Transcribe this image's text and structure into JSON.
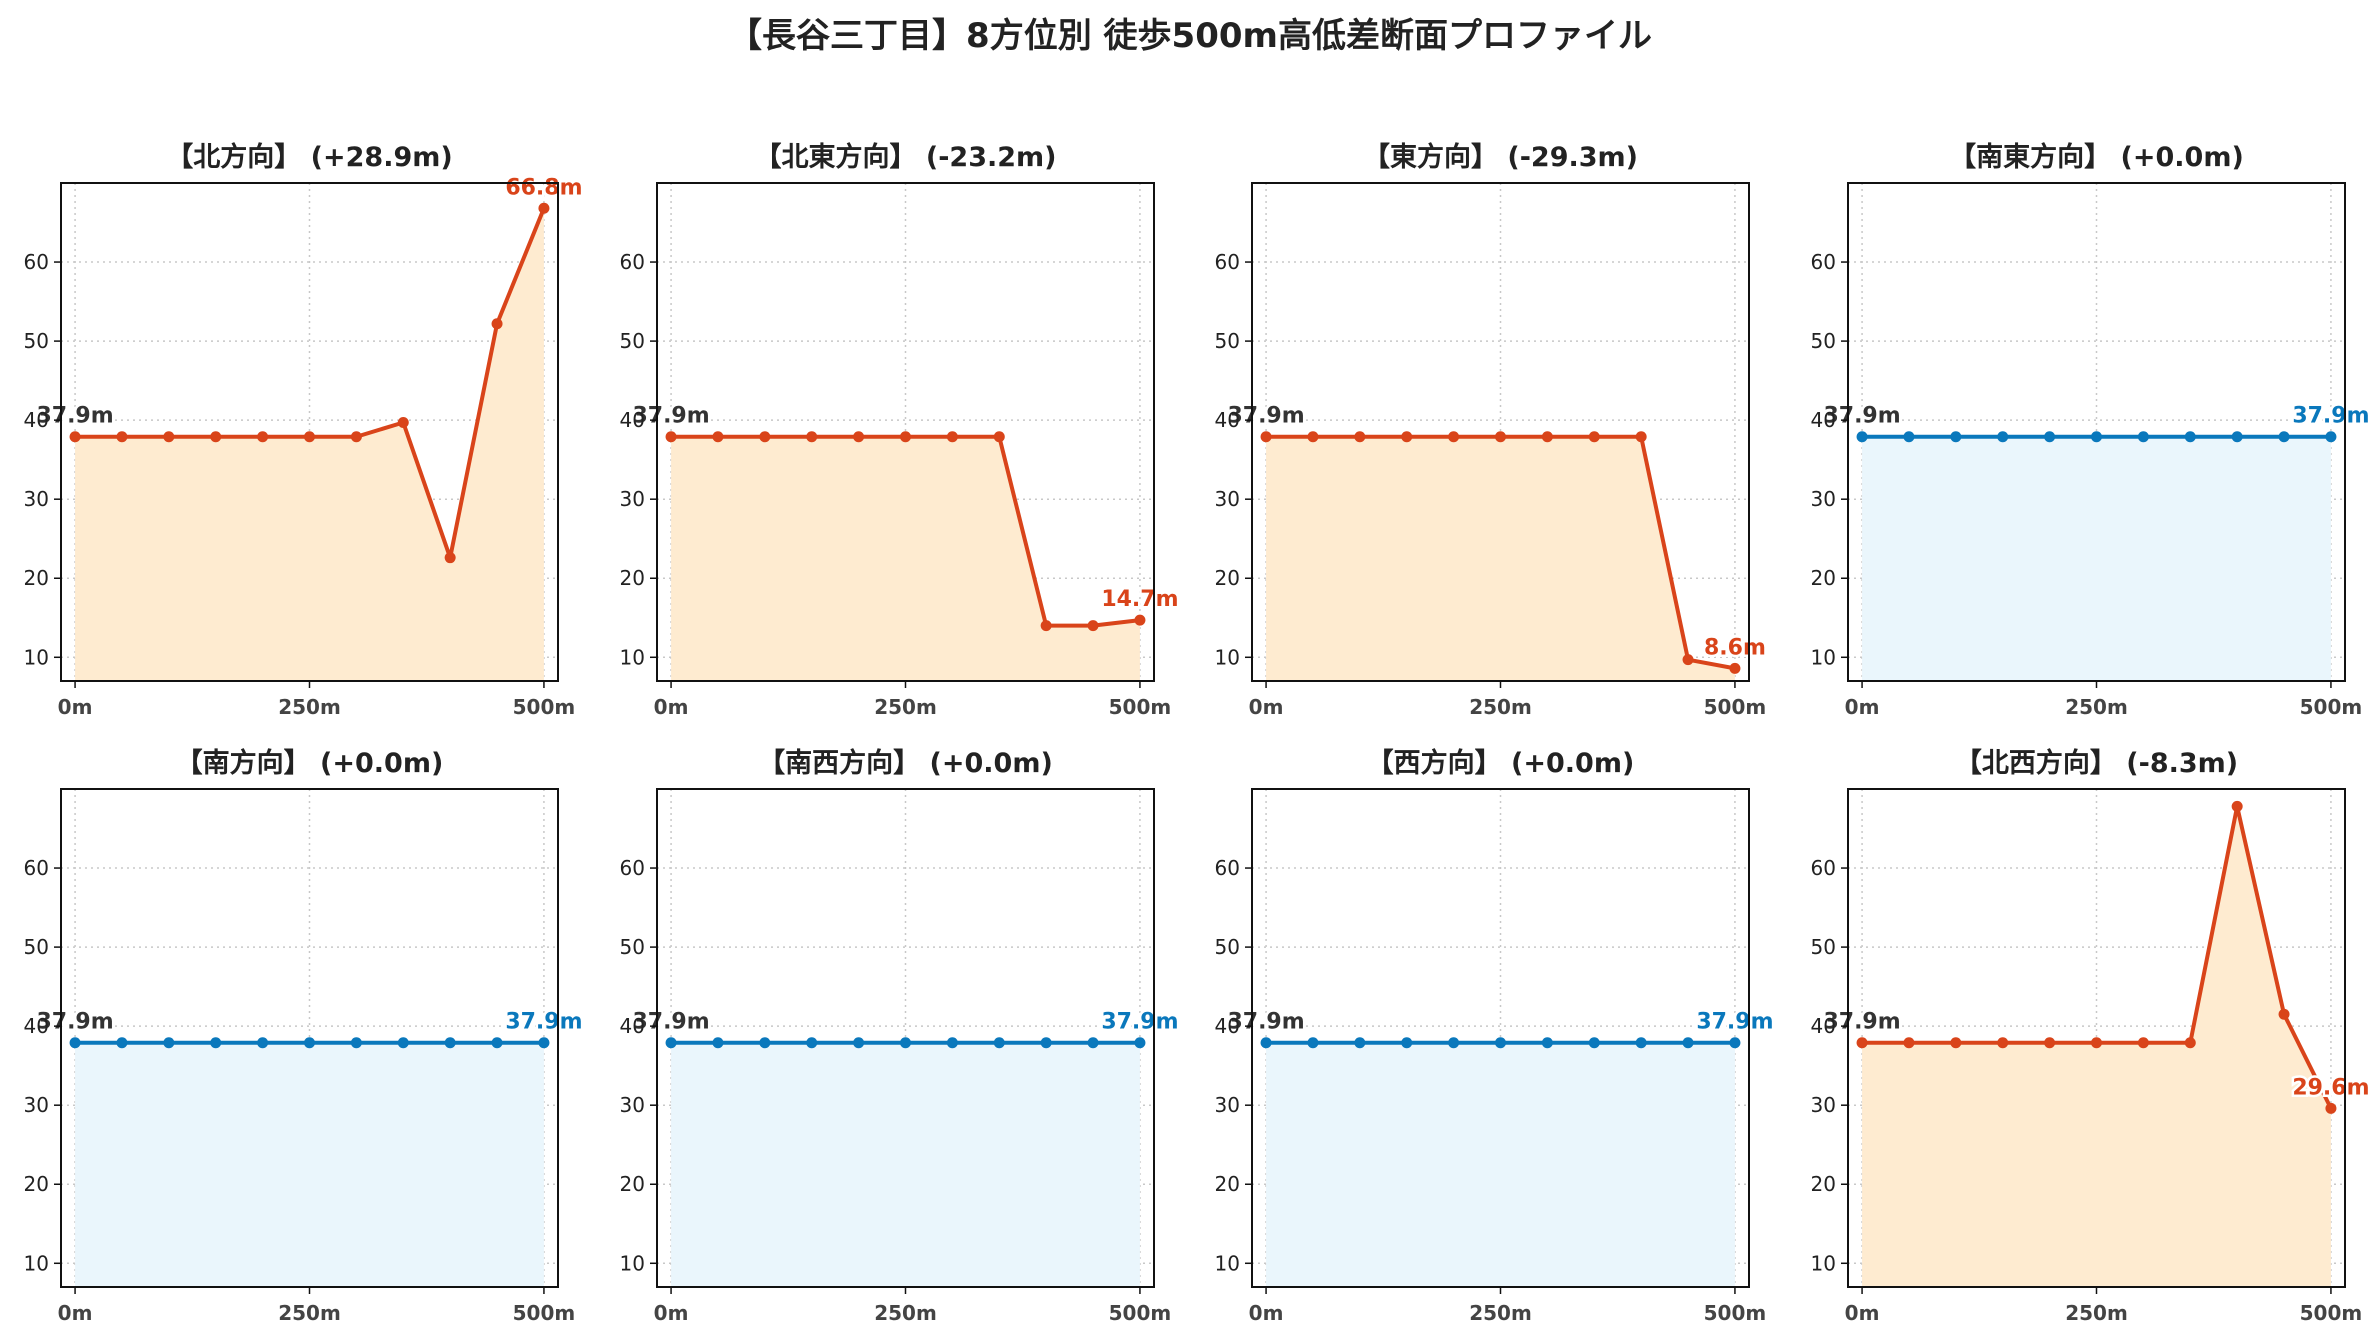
{
  "title": "【長谷三丁目】8方位別 徒歩500m高低差断面プロファイル",
  "colors": {
    "up_line": "#d9441a",
    "up_fill": "#feebd0",
    "flat_line": "#0a78bc",
    "flat_fill": "#eaf6fc",
    "start_label": "#333333",
    "grid": "#c8c8c8"
  },
  "chart_data": [
    {
      "type": "line",
      "title": "【北方向】 (+28.9m)",
      "x": [
        0,
        50,
        100,
        150,
        200,
        250,
        300,
        350,
        400,
        450,
        500
      ],
      "values": [
        37.9,
        37.9,
        37.9,
        37.9,
        37.9,
        37.9,
        37.9,
        39.7,
        22.6,
        52.2,
        66.8
      ],
      "start_label": "37.9m",
      "end_label": "66.8m",
      "style": "diff",
      "xticks": [
        0,
        250,
        500
      ],
      "xtick_labels": [
        "0m",
        "250m",
        "500m"
      ],
      "yticks": [
        10,
        20,
        30,
        40,
        50,
        60
      ],
      "xlim": [
        -15,
        515
      ],
      "ylim": [
        7,
        70
      ],
      "grid": true
    },
    {
      "type": "line",
      "title": "【北東方向】 (-23.2m)",
      "x": [
        0,
        50,
        100,
        150,
        200,
        250,
        300,
        350,
        400,
        450,
        500
      ],
      "values": [
        37.9,
        37.9,
        37.9,
        37.9,
        37.9,
        37.9,
        37.9,
        37.9,
        14.0,
        14.0,
        14.7
      ],
      "start_label": "37.9m",
      "end_label": "14.7m",
      "style": "diff",
      "xticks": [
        0,
        250,
        500
      ],
      "xtick_labels": [
        "0m",
        "250m",
        "500m"
      ],
      "yticks": [
        10,
        20,
        30,
        40,
        50,
        60
      ],
      "xlim": [
        -15,
        515
      ],
      "ylim": [
        7,
        70
      ],
      "grid": true
    },
    {
      "type": "line",
      "title": "【東方向】 (-29.3m)",
      "x": [
        0,
        50,
        100,
        150,
        200,
        250,
        300,
        350,
        400,
        450,
        500
      ],
      "values": [
        37.9,
        37.9,
        37.9,
        37.9,
        37.9,
        37.9,
        37.9,
        37.9,
        37.9,
        9.7,
        8.6
      ],
      "start_label": "37.9m",
      "end_label": "8.6m",
      "style": "diff",
      "xticks": [
        0,
        250,
        500
      ],
      "xtick_labels": [
        "0m",
        "250m",
        "500m"
      ],
      "yticks": [
        10,
        20,
        30,
        40,
        50,
        60
      ],
      "xlim": [
        -15,
        515
      ],
      "ylim": [
        7,
        70
      ],
      "grid": true
    },
    {
      "type": "line",
      "title": "【南東方向】 (+0.0m)",
      "x": [
        0,
        50,
        100,
        150,
        200,
        250,
        300,
        350,
        400,
        450,
        500
      ],
      "values": [
        37.9,
        37.9,
        37.9,
        37.9,
        37.9,
        37.9,
        37.9,
        37.9,
        37.9,
        37.9,
        37.9
      ],
      "start_label": "37.9m",
      "end_label": "37.9m",
      "style": "flat",
      "xticks": [
        0,
        250,
        500
      ],
      "xtick_labels": [
        "0m",
        "250m",
        "500m"
      ],
      "yticks": [
        10,
        20,
        30,
        40,
        50,
        60
      ],
      "xlim": [
        -15,
        515
      ],
      "ylim": [
        7,
        70
      ],
      "grid": true
    },
    {
      "type": "line",
      "title": "【南方向】 (+0.0m)",
      "x": [
        0,
        50,
        100,
        150,
        200,
        250,
        300,
        350,
        400,
        450,
        500
      ],
      "values": [
        37.9,
        37.9,
        37.9,
        37.9,
        37.9,
        37.9,
        37.9,
        37.9,
        37.9,
        37.9,
        37.9
      ],
      "start_label": "37.9m",
      "end_label": "37.9m",
      "style": "flat",
      "xticks": [
        0,
        250,
        500
      ],
      "xtick_labels": [
        "0m",
        "250m",
        "500m"
      ],
      "yticks": [
        10,
        20,
        30,
        40,
        50,
        60
      ],
      "xlim": [
        -15,
        515
      ],
      "ylim": [
        7,
        70
      ],
      "grid": true
    },
    {
      "type": "line",
      "title": "【南西方向】 (+0.0m)",
      "x": [
        0,
        50,
        100,
        150,
        200,
        250,
        300,
        350,
        400,
        450,
        500
      ],
      "values": [
        37.9,
        37.9,
        37.9,
        37.9,
        37.9,
        37.9,
        37.9,
        37.9,
        37.9,
        37.9,
        37.9
      ],
      "start_label": "37.9m",
      "end_label": "37.9m",
      "style": "flat",
      "xticks": [
        0,
        250,
        500
      ],
      "xtick_labels": [
        "0m",
        "250m",
        "500m"
      ],
      "yticks": [
        10,
        20,
        30,
        40,
        50,
        60
      ],
      "xlim": [
        -15,
        515
      ],
      "ylim": [
        7,
        70
      ],
      "grid": true
    },
    {
      "type": "line",
      "title": "【西方向】 (+0.0m)",
      "x": [
        0,
        50,
        100,
        150,
        200,
        250,
        300,
        350,
        400,
        450,
        500
      ],
      "values": [
        37.9,
        37.9,
        37.9,
        37.9,
        37.9,
        37.9,
        37.9,
        37.9,
        37.9,
        37.9,
        37.9
      ],
      "start_label": "37.9m",
      "end_label": "37.9m",
      "style": "flat",
      "xticks": [
        0,
        250,
        500
      ],
      "xtick_labels": [
        "0m",
        "250m",
        "500m"
      ],
      "yticks": [
        10,
        20,
        30,
        40,
        50,
        60
      ],
      "xlim": [
        -15,
        515
      ],
      "ylim": [
        7,
        70
      ],
      "grid": true
    },
    {
      "type": "line",
      "title": "【北西方向】 (-8.3m)",
      "x": [
        0,
        50,
        100,
        150,
        200,
        250,
        300,
        350,
        400,
        450,
        500
      ],
      "values": [
        37.9,
        37.9,
        37.9,
        37.9,
        37.9,
        37.9,
        37.9,
        37.9,
        67.8,
        41.5,
        29.6
      ],
      "start_label": "37.9m",
      "end_label": "29.6m",
      "style": "diff",
      "xticks": [
        0,
        250,
        500
      ],
      "xtick_labels": [
        "0m",
        "250m",
        "500m"
      ],
      "yticks": [
        10,
        20,
        30,
        40,
        50,
        60
      ],
      "xlim": [
        -15,
        515
      ],
      "ylim": [
        7,
        70
      ],
      "grid": true
    }
  ]
}
